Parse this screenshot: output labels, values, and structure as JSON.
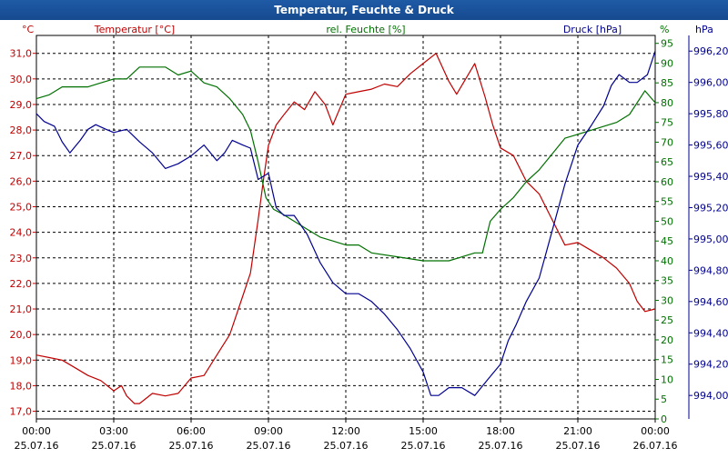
{
  "window": {
    "title": "Temperatur, Feuchte & Druck"
  },
  "chart_data": {
    "type": "line",
    "title": "Temperatur, Feuchte & Druck",
    "x_labels": [
      {
        "time": "00:00",
        "date": "25.07.16"
      },
      {
        "time": "03:00",
        "date": "25.07.16"
      },
      {
        "time": "06:00",
        "date": "25.07.16"
      },
      {
        "time": "09:00",
        "date": "25.07.16"
      },
      {
        "time": "12:00",
        "date": "25.07.16"
      },
      {
        "time": "15:00",
        "date": "25.07.16"
      },
      {
        "time": "18:00",
        "date": "25.07.16"
      },
      {
        "time": "21:00",
        "date": "25.07.16"
      },
      {
        "time": "00:00",
        "date": "26.07.16"
      }
    ],
    "x_range_hours": [
      0,
      24
    ],
    "axes": {
      "temperature": {
        "unit": "°C",
        "label": "Temperatur [°C]",
        "color": "#c00000",
        "range": [
          16.7,
          31.7
        ],
        "ticks": [
          "17,0",
          "18,0",
          "19,0",
          "20,0",
          "21,0",
          "22,0",
          "23,0",
          "24,0",
          "25,0",
          "26,0",
          "27,0",
          "28,0",
          "29,0",
          "30,0",
          "31,0"
        ]
      },
      "humidity": {
        "unit": "%",
        "label": "rel. Feuchte [%]",
        "color": "#007000",
        "range": [
          0,
          97
        ],
        "ticks": [
          "0",
          "5",
          "10",
          "15",
          "20",
          "25",
          "30",
          "35",
          "40",
          "45",
          "50",
          "55",
          "60",
          "65",
          "70",
          "75",
          "80",
          "85",
          "90",
          "95"
        ]
      },
      "pressure": {
        "unit": "hPa",
        "label": "Druck [hPa]",
        "color": "#000090",
        "range": [
          993.85,
          996.3
        ],
        "ticks": [
          "994,00",
          "994,20",
          "994,40",
          "994,60",
          "994,80",
          "995,00",
          "995,20",
          "995,40",
          "995,60",
          "995,80",
          "996,00",
          "996,20"
        ]
      }
    },
    "grid": true,
    "series": [
      {
        "name": "Temperatur [°C]",
        "axis": "temperature",
        "color": "#c00000",
        "points": [
          [
            0,
            19.2
          ],
          [
            0.5,
            19.1
          ],
          [
            1,
            19.0
          ],
          [
            1.5,
            18.7
          ],
          [
            2,
            18.4
          ],
          [
            2.5,
            18.2
          ],
          [
            3,
            17.8
          ],
          [
            3.3,
            18.0
          ],
          [
            3.5,
            17.6
          ],
          [
            3.8,
            17.3
          ],
          [
            4,
            17.3
          ],
          [
            4.5,
            17.7
          ],
          [
            5,
            17.6
          ],
          [
            5.5,
            17.7
          ],
          [
            6,
            18.3
          ],
          [
            6.5,
            18.4
          ],
          [
            7,
            19.2
          ],
          [
            7.5,
            20.0
          ],
          [
            8,
            21.5
          ],
          [
            8.3,
            22.4
          ],
          [
            8.6,
            24.5
          ],
          [
            8.8,
            26.0
          ],
          [
            9,
            27.4
          ],
          [
            9.3,
            28.2
          ],
          [
            9.6,
            28.6
          ],
          [
            10,
            29.1
          ],
          [
            10.4,
            28.8
          ],
          [
            10.8,
            29.5
          ],
          [
            11.2,
            29.0
          ],
          [
            11.5,
            28.2
          ],
          [
            12,
            29.4
          ],
          [
            12.5,
            29.5
          ],
          [
            13,
            29.6
          ],
          [
            13.5,
            29.8
          ],
          [
            14,
            29.7
          ],
          [
            14.5,
            30.2
          ],
          [
            15,
            30.6
          ],
          [
            15.5,
            31.0
          ],
          [
            16,
            29.9
          ],
          [
            16.3,
            29.4
          ],
          [
            17,
            30.6
          ],
          [
            17.4,
            29.3
          ],
          [
            17.7,
            28.2
          ],
          [
            18,
            27.3
          ],
          [
            18.5,
            27.0
          ],
          [
            19,
            26.0
          ],
          [
            19.5,
            25.5
          ],
          [
            20,
            24.5
          ],
          [
            20.5,
            23.5
          ],
          [
            21,
            23.6
          ],
          [
            21.5,
            23.3
          ],
          [
            22,
            23.0
          ],
          [
            22.5,
            22.6
          ],
          [
            23,
            22.0
          ],
          [
            23.3,
            21.3
          ],
          [
            23.6,
            20.9
          ],
          [
            24,
            21.0
          ]
        ]
      },
      {
        "name": "rel. Feuchte [%]",
        "axis": "humidity",
        "color": "#007000",
        "points": [
          [
            0,
            81
          ],
          [
            0.5,
            82
          ],
          [
            1,
            84
          ],
          [
            2,
            84
          ],
          [
            2.5,
            85
          ],
          [
            3,
            86
          ],
          [
            3.5,
            86
          ],
          [
            4,
            89
          ],
          [
            4.5,
            89
          ],
          [
            5,
            89
          ],
          [
            5.5,
            87
          ],
          [
            6,
            88
          ],
          [
            6.5,
            85
          ],
          [
            7,
            84
          ],
          [
            7.5,
            81
          ],
          [
            8,
            77
          ],
          [
            8.3,
            73
          ],
          [
            8.6,
            65
          ],
          [
            8.9,
            56
          ],
          [
            9.2,
            53
          ],
          [
            9.5,
            52
          ],
          [
            10,
            50
          ],
          [
            10.5,
            48
          ],
          [
            11,
            46
          ],
          [
            11.5,
            45
          ],
          [
            12,
            44
          ],
          [
            12.5,
            44
          ],
          [
            13,
            42
          ],
          [
            14,
            41
          ],
          [
            15,
            40
          ],
          [
            16,
            40
          ],
          [
            17,
            42
          ],
          [
            17.3,
            42
          ],
          [
            17.6,
            50
          ],
          [
            18,
            53
          ],
          [
            18.5,
            56
          ],
          [
            19,
            60
          ],
          [
            19.5,
            63
          ],
          [
            20,
            67
          ],
          [
            20.5,
            71
          ],
          [
            21,
            72
          ],
          [
            21.5,
            73
          ],
          [
            22,
            74
          ],
          [
            22.5,
            75
          ],
          [
            23,
            77
          ],
          [
            23.3,
            80
          ],
          [
            23.6,
            83
          ],
          [
            24,
            80
          ]
        ]
      },
      {
        "name": "Druck [hPa]",
        "axis": "pressure",
        "color": "#000090",
        "points": [
          [
            0,
            995.8
          ],
          [
            0.3,
            995.75
          ],
          [
            0.7,
            995.72
          ],
          [
            1,
            995.62
          ],
          [
            1.3,
            995.55
          ],
          [
            1.7,
            995.63
          ],
          [
            2,
            995.7
          ],
          [
            2.3,
            995.73
          ],
          [
            2.7,
            995.7
          ],
          [
            3,
            995.68
          ],
          [
            3.5,
            995.7
          ],
          [
            4,
            995.62
          ],
          [
            4.5,
            995.55
          ],
          [
            5,
            995.45
          ],
          [
            5.5,
            995.48
          ],
          [
            6,
            995.53
          ],
          [
            6.5,
            995.6
          ],
          [
            7,
            995.5
          ],
          [
            7.3,
            995.55
          ],
          [
            7.6,
            995.63
          ],
          [
            8,
            995.6
          ],
          [
            8.3,
            995.58
          ],
          [
            8.6,
            995.38
          ],
          [
            9,
            995.42
          ],
          [
            9.3,
            995.2
          ],
          [
            9.6,
            995.15
          ],
          [
            10,
            995.15
          ],
          [
            10.5,
            995.03
          ],
          [
            11,
            994.85
          ],
          [
            11.5,
            994.72
          ],
          [
            12,
            994.65
          ],
          [
            12.5,
            994.65
          ],
          [
            13,
            994.6
          ],
          [
            13.5,
            994.52
          ],
          [
            14,
            994.42
          ],
          [
            14.5,
            994.3
          ],
          [
            15,
            994.15
          ],
          [
            15.3,
            994.0
          ],
          [
            15.6,
            994.0
          ],
          [
            16,
            994.05
          ],
          [
            16.5,
            994.05
          ],
          [
            17,
            994.0
          ],
          [
            17.5,
            994.1
          ],
          [
            18,
            994.2
          ],
          [
            18.3,
            994.35
          ],
          [
            18.6,
            994.45
          ],
          [
            19,
            994.6
          ],
          [
            19.5,
            994.75
          ],
          [
            20,
            995.05
          ],
          [
            20.5,
            995.35
          ],
          [
            21,
            995.6
          ],
          [
            21.5,
            995.72
          ],
          [
            22,
            995.85
          ],
          [
            22.3,
            995.98
          ],
          [
            22.6,
            996.05
          ],
          [
            23,
            996.0
          ],
          [
            23.3,
            996.0
          ],
          [
            23.7,
            996.05
          ],
          [
            24,
            996.2
          ]
        ]
      }
    ]
  }
}
